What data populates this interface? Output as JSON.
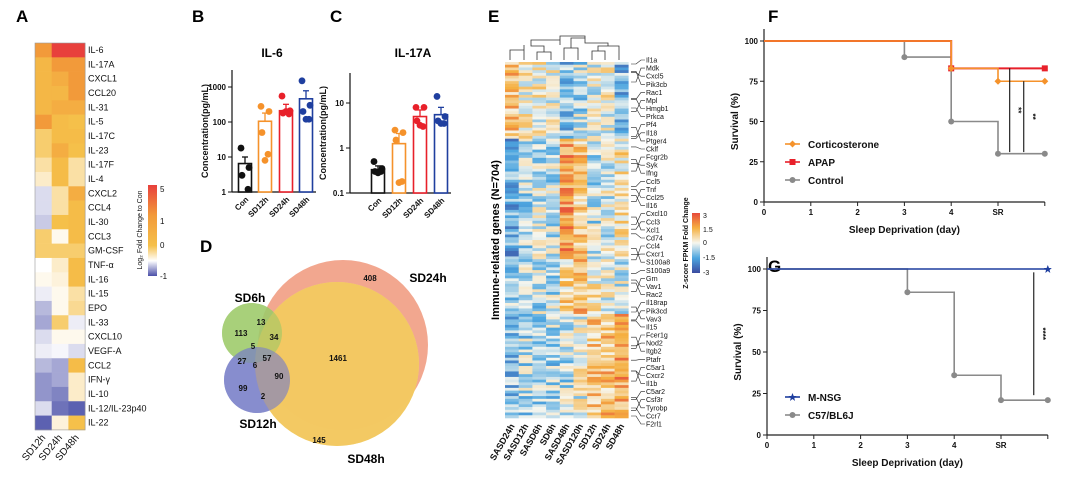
{
  "panel_labels": {
    "A": "A",
    "B": "B",
    "C": "C",
    "D": "D",
    "E": "E",
    "F": "F",
    "G": "G"
  },
  "chart_data": [
    {
      "panel": "A",
      "type": "heatmap",
      "columns": [
        "SD12h",
        "SD24h",
        "SD48h"
      ],
      "rows": [
        "IL-6",
        "IL-17A",
        "CXCL1",
        "CCL20",
        "IL-31",
        "IL-5",
        "IL-17C",
        "IL-23",
        "IL-17F",
        "IL-4",
        "CXCL2",
        "CCL4",
        "IL-30",
        "CCL3",
        "GM-CSF",
        "TNF-α",
        "IL-16",
        "IL-15",
        "EPO",
        "IL-33",
        "CXCL10",
        "VEGF-A",
        "CCL2",
        "IFN-γ",
        "IL-10",
        "IL-12/IL-23p40",
        "IL-22"
      ],
      "values": [
        [
          3,
          5,
          5
        ],
        [
          1.5,
          3,
          3
        ],
        [
          1.5,
          2,
          3
        ],
        [
          1.5,
          1.5,
          3
        ],
        [
          1.5,
          2,
          2
        ],
        [
          3,
          1.2,
          1
        ],
        [
          0.8,
          1.2,
          1.2
        ],
        [
          0.8,
          2,
          1
        ],
        [
          0.5,
          1.2,
          0.5
        ],
        [
          0.3,
          1.2,
          0.5
        ],
        [
          -0.2,
          0.5,
          2
        ],
        [
          -0.2,
          0.5,
          1.2
        ],
        [
          -0.3,
          1,
          1.2
        ],
        [
          0.8,
          0.1,
          1.2
        ],
        [
          0.8,
          0.8,
          0.8
        ],
        [
          0,
          0.3,
          1.2
        ],
        [
          0.1,
          0.2,
          1.2
        ],
        [
          -0.1,
          0.1,
          0.5
        ],
        [
          -0.4,
          0.1,
          0.6
        ],
        [
          -0.5,
          0.8,
          -0.1
        ],
        [
          -0.2,
          0.1,
          0.1
        ],
        [
          -0.1,
          -0.05,
          -0.2
        ],
        [
          -0.4,
          -0.5,
          1.2
        ],
        [
          -0.6,
          -0.5,
          0.3
        ],
        [
          -0.6,
          -0.7,
          0.3
        ],
        [
          -0.2,
          -0.8,
          -0.9
        ],
        [
          -0.9,
          0.2,
          1
        ]
      ],
      "colorbar": {
        "label": "Log₂ Fold Change to Con",
        "ticks": [
          "5",
          "1",
          "0",
          "-1"
        ],
        "range": [
          -1,
          5
        ],
        "colors": {
          "-1": "#4a4fa8",
          "0": "#ffffff",
          "1": "#f5c04a",
          "3": "#f29a3a",
          "5": "#e8403c"
        }
      }
    },
    {
      "panel": "B",
      "type": "bar",
      "title": "IL-6",
      "ylabel": "Concentration(pg/mL)",
      "yscale": "log",
      "ylim": [
        1,
        3000
      ],
      "yticks": [
        "1000",
        "100",
        "10",
        "1"
      ],
      "categories": [
        "Con",
        "SD12h",
        "SD24h",
        "SD48h"
      ],
      "colors": [
        "#111111",
        "#f5922b",
        "#e8202a",
        "#1f3f9f"
      ],
      "values": [
        6.5,
        105,
        210,
        460
      ],
      "error_upper": [
        10,
        180,
        320,
        780
      ],
      "points": [
        [
          18,
          5,
          3,
          1.2
        ],
        [
          280,
          200,
          50,
          12,
          8
        ],
        [
          550,
          210,
          180,
          170,
          200
        ],
        [
          1500,
          300,
          200,
          120,
          120
        ]
      ]
    },
    {
      "panel": "C",
      "type": "bar",
      "title": "IL-17A",
      "ylabel": "Concentration(pg/mL)",
      "yscale": "log",
      "ylim": [
        0.1,
        45
      ],
      "yticks": [
        "10",
        "1",
        "0.1"
      ],
      "categories": [
        "Con",
        "SD12h",
        "SD24h",
        "SD48h"
      ],
      "colors": [
        "#111111",
        "#f5922b",
        "#e8202a",
        "#1f3f9f"
      ],
      "values": [
        0.33,
        1.25,
        5,
        5.5
      ],
      "error_upper": [
        0.4,
        2.1,
        7,
        8
      ],
      "points": [
        [
          0.5,
          0.35,
          0.3,
          0.3,
          0.28
        ],
        [
          2.5,
          2.2,
          1.5,
          0.18,
          0.17
        ],
        [
          8,
          8,
          4,
          3,
          3.2
        ],
        [
          14,
          5,
          4,
          3.5,
          3.5
        ]
      ]
    },
    {
      "panel": "D",
      "type": "venn",
      "sets": [
        {
          "name": "SD6h",
          "color": "#9ccb6a"
        },
        {
          "name": "SD12h",
          "color": "#7a80c8"
        },
        {
          "name": "SD24h",
          "color": "#ee8a6a"
        },
        {
          "name": "SD48h",
          "color": "#eeea8a"
        }
      ],
      "regions": [
        {
          "sets": "SD24h only",
          "value": "408"
        },
        {
          "sets": "SD6h only",
          "value": "113"
        },
        {
          "sets": "SD6h∩SD24h",
          "value": "13"
        },
        {
          "sets": "SD6h∩SD24h∩SD48h",
          "value": "34"
        },
        {
          "sets": "SD6h∩SD12h",
          "value": "5"
        },
        {
          "sets": "SD6h∩SD12h (2)",
          "value": "27"
        },
        {
          "sets": "SD6h∩SD12h∩SD24h∩SD48h",
          "value": "6"
        },
        {
          "sets": "SD6h∩SD12h∩SD24h∩SD48h (2)",
          "value": "57"
        },
        {
          "sets": "SD12h∩SD24h∩SD48h",
          "value": "90"
        },
        {
          "sets": "SD12h only",
          "value": "99"
        },
        {
          "sets": "SD12h∩SD48h",
          "value": "2"
        },
        {
          "sets": "SD24h∩SD48h",
          "value": "1461"
        },
        {
          "sets": "SD48h only",
          "value": "145"
        }
      ]
    },
    {
      "panel": "E",
      "type": "heatmap",
      "ylabel": "Immune-related genes (N=704)",
      "columns": [
        "SASD24h",
        "SASD12h",
        "SASD6h",
        "SD6h",
        "SASD48h",
        "SASD120h",
        "SD12h",
        "SD24h",
        "SD48h"
      ],
      "genes": [
        "Il1a",
        "Mdk",
        "Cxcl5",
        "Pik3cb",
        "Rac1",
        "Mpl",
        "Hmgb1",
        "Prkca",
        "Pf4",
        "Il18",
        "Ptger4",
        "Cklf",
        "Fcgr2b",
        "Syk",
        "Ifng",
        "Ccl5",
        "Tnf",
        "Ccl25",
        "Il16",
        "Cxcl10",
        "Ccl3",
        "Xcl1",
        "Cd74",
        "Ccl4",
        "Cxcr1",
        "S100a8",
        "S100a9",
        "Grn",
        "Vav1",
        "Rac2",
        "Il18rap",
        "Pik3cd",
        "Vav3",
        "Il15",
        "Fcer1g",
        "Nod2",
        "Itgb2",
        "Ptafr",
        "C5ar1",
        "Cxcr2",
        "Il1b",
        "C5ar2",
        "Csf3r",
        "Tyrobp",
        "Ccr7",
        "F2rl1"
      ],
      "colorbar": {
        "label": "Z-score FPKM Fold Change",
        "ticks": [
          "3",
          "1.5",
          "0",
          "-1.5",
          "-3"
        ],
        "range": [
          -3,
          3
        ],
        "colors": {
          "-3": "#3b4ba0",
          "-1.5": "#4da6e0",
          "0": "#f6f6ee",
          "1.5": "#f5b041",
          "3": "#e64a3a"
        }
      }
    },
    {
      "panel": "F",
      "type": "line",
      "subtype": "kaplan-meier",
      "xlabel": "Sleep Deprivation (day)",
      "ylabel": "Survival (%)",
      "xticks": [
        "0",
        "1",
        "2",
        "3",
        "4",
        "SR"
      ],
      "yticks": [
        "0",
        "25",
        "50",
        "75",
        "100"
      ],
      "xlim": [
        0,
        6
      ],
      "ylim": [
        0,
        100
      ],
      "legend": "left-middle",
      "series": [
        {
          "name": "Corticosterone",
          "color": "#f5922b",
          "marker": "diamond",
          "x": [
            0,
            4,
            5,
            6
          ],
          "y": [
            100,
            83,
            75,
            75
          ]
        },
        {
          "name": "APAP",
          "color": "#e8202a",
          "marker": "square",
          "x": [
            0,
            4,
            6
          ],
          "y": [
            100,
            83,
            83
          ]
        },
        {
          "name": "Control",
          "color": "#8a8a8a",
          "marker": "circle",
          "x": [
            0,
            3,
            4,
            5,
            6
          ],
          "y": [
            100,
            90,
            50,
            30,
            30
          ]
        }
      ],
      "significance": [
        {
          "label": "**",
          "x": 5.25,
          "y": [
            83,
            31
          ]
        },
        {
          "label": "**",
          "x": 5.55,
          "y": [
            75,
            31
          ]
        }
      ]
    },
    {
      "panel": "G",
      "type": "line",
      "subtype": "kaplan-meier",
      "xlabel": "Sleep Deprivation (day)",
      "ylabel": "Survival (%)",
      "xticks": [
        "0",
        "1",
        "2",
        "3",
        "4",
        "SR"
      ],
      "yticks": [
        "0",
        "25",
        "50",
        "75",
        "100"
      ],
      "xlim": [
        0,
        6
      ],
      "ylim": [
        0,
        100
      ],
      "legend": "bottom-left",
      "series": [
        {
          "name": "M-NSG",
          "color": "#1f3f9f",
          "marker": "star",
          "x": [
            0,
            6
          ],
          "y": [
            100,
            100
          ]
        },
        {
          "name": "C57/BL6J",
          "color": "#8a8a8a",
          "marker": "circle",
          "x": [
            0,
            3,
            4,
            5,
            6
          ],
          "y": [
            100,
            86,
            36,
            21,
            21
          ]
        }
      ],
      "significance": [
        {
          "label": "****",
          "x": 5.7,
          "y": [
            98,
            24
          ]
        }
      ]
    }
  ]
}
